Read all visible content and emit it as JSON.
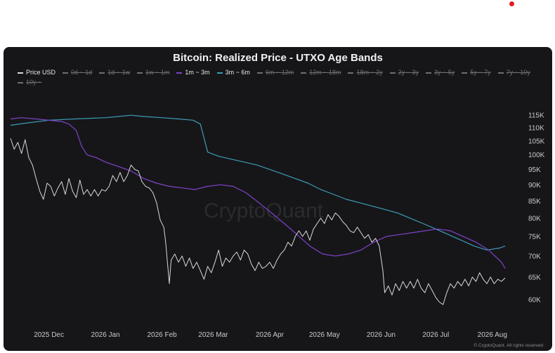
{
  "chart_data": {
    "type": "line",
    "title": "Bitcoin: Realized Price - UTXO Age Bands",
    "y_scale": "log",
    "ylim": [
      56000,
      120000
    ],
    "y_ticks": [
      {
        "value": 115000,
        "label": "115K"
      },
      {
        "value": 110000,
        "label": "110K"
      },
      {
        "value": 105000,
        "label": "105K"
      },
      {
        "value": 100000,
        "label": "100K"
      },
      {
        "value": 95000,
        "label": "95K"
      },
      {
        "value": 90000,
        "label": "90K"
      },
      {
        "value": 85000,
        "label": "85K"
      },
      {
        "value": 80000,
        "label": "80K"
      },
      {
        "value": 75000,
        "label": "75K"
      },
      {
        "value": 70000,
        "label": "70K"
      },
      {
        "value": 65000,
        "label": "65K"
      },
      {
        "value": 60000,
        "label": "60K"
      }
    ],
    "xlim": [
      "2025-11-10",
      "2026-08-18"
    ],
    "x_ticks": [
      {
        "value": "2025-12-01",
        "label": "2025 Dec"
      },
      {
        "value": "2026-01-01",
        "label": "2026 Jan"
      },
      {
        "value": "2026-02-01",
        "label": "2026 Feb"
      },
      {
        "value": "2026-03-01",
        "label": "2026 Mar"
      },
      {
        "value": "2026-04-01",
        "label": "2026 Apr"
      },
      {
        "value": "2026-05-01",
        "label": "2026 May"
      },
      {
        "value": "2026-06-01",
        "label": "2026 Jun"
      },
      {
        "value": "2026-07-01",
        "label": "2026 Jul"
      },
      {
        "value": "2026-08-01",
        "label": "2026 Aug"
      }
    ],
    "grid": false,
    "legend_position": "top",
    "legend": [
      {
        "name": "Price USD",
        "visible": true
      },
      {
        "name": "0d ~ 1d",
        "visible": false
      },
      {
        "name": "1d ~ 1w",
        "visible": false
      },
      {
        "name": "1w ~ 1m",
        "visible": false
      },
      {
        "name": "1m ~ 3m",
        "visible": true
      },
      {
        "name": "3m ~ 6m",
        "visible": true
      },
      {
        "name": "6m ~ 12m",
        "visible": false
      },
      {
        "name": "12m ~ 18m",
        "visible": false
      },
      {
        "name": "18m ~ 2y",
        "visible": false
      },
      {
        "name": "2y ~ 3y",
        "visible": false
      },
      {
        "name": "3y ~ 5y",
        "visible": false
      },
      {
        "name": "5y ~ 7y",
        "visible": false
      },
      {
        "name": "7y ~ 10y",
        "visible": false
      },
      {
        "name": "10y ~",
        "visible": false
      }
    ],
    "series": [
      {
        "name": "Price USD",
        "color": "#d9d9d9",
        "points": [
          [
            "2025-11-10",
            106000
          ],
          [
            "2025-11-12",
            102000
          ],
          [
            "2025-11-14",
            104500
          ],
          [
            "2025-11-16",
            100500
          ],
          [
            "2025-11-18",
            105500
          ],
          [
            "2025-11-20",
            99000
          ],
          [
            "2025-11-22",
            96500
          ],
          [
            "2025-11-24",
            92000
          ],
          [
            "2025-11-26",
            88000
          ],
          [
            "2025-11-28",
            85500
          ],
          [
            "2025-11-30",
            90500
          ],
          [
            "2025-12-02",
            89500
          ],
          [
            "2025-12-04",
            86500
          ],
          [
            "2025-12-06",
            89000
          ],
          [
            "2025-12-08",
            91000
          ],
          [
            "2025-12-10",
            87000
          ],
          [
            "2025-12-12",
            92000
          ],
          [
            "2025-12-14",
            88000
          ],
          [
            "2025-12-16",
            86000
          ],
          [
            "2025-12-18",
            91500
          ],
          [
            "2025-12-20",
            87000
          ],
          [
            "2025-12-22",
            88500
          ],
          [
            "2025-12-24",
            86500
          ],
          [
            "2025-12-26",
            88500
          ],
          [
            "2025-12-28",
            86500
          ],
          [
            "2025-12-30",
            88500
          ],
          [
            "2026-01-01",
            88000
          ],
          [
            "2026-01-03",
            89500
          ],
          [
            "2026-01-05",
            93000
          ],
          [
            "2026-01-07",
            91000
          ],
          [
            "2026-01-09",
            94000
          ],
          [
            "2026-01-11",
            91000
          ],
          [
            "2026-01-13",
            93000
          ],
          [
            "2026-01-15",
            96500
          ],
          [
            "2026-01-17",
            95000
          ],
          [
            "2026-01-19",
            94500
          ],
          [
            "2026-01-21",
            91000
          ],
          [
            "2026-01-23",
            89500
          ],
          [
            "2026-01-25",
            89000
          ],
          [
            "2026-01-27",
            87500
          ],
          [
            "2026-01-29",
            84500
          ],
          [
            "2026-01-31",
            79500
          ],
          [
            "2026-02-02",
            77500
          ],
          [
            "2026-02-03",
            73500
          ],
          [
            "2026-02-05",
            63500
          ],
          [
            "2026-02-06",
            69000
          ],
          [
            "2026-02-08",
            70500
          ],
          [
            "2026-02-10",
            68500
          ],
          [
            "2026-02-12",
            70000
          ],
          [
            "2026-02-14",
            67500
          ],
          [
            "2026-02-16",
            69500
          ],
          [
            "2026-02-18",
            67000
          ],
          [
            "2026-02-20",
            68500
          ],
          [
            "2026-02-22",
            66500
          ],
          [
            "2026-02-24",
            64500
          ],
          [
            "2026-02-26",
            67500
          ],
          [
            "2026-02-28",
            66000
          ],
          [
            "2026-03-02",
            68500
          ],
          [
            "2026-03-04",
            71500
          ],
          [
            "2026-03-06",
            67500
          ],
          [
            "2026-03-08",
            69500
          ],
          [
            "2026-03-10",
            68500
          ],
          [
            "2026-03-12",
            70000
          ],
          [
            "2026-03-14",
            71000
          ],
          [
            "2026-03-16",
            69000
          ],
          [
            "2026-03-18",
            71500
          ],
          [
            "2026-03-20",
            70500
          ],
          [
            "2026-03-22",
            68000
          ],
          [
            "2026-03-24",
            66500
          ],
          [
            "2026-03-26",
            68500
          ],
          [
            "2026-03-28",
            67000
          ],
          [
            "2026-03-30",
            67500
          ],
          [
            "2026-04-01",
            68500
          ],
          [
            "2026-04-03",
            67000
          ],
          [
            "2026-04-05",
            69000
          ],
          [
            "2026-04-07",
            70500
          ],
          [
            "2026-04-09",
            71500
          ],
          [
            "2026-04-11",
            73500
          ],
          [
            "2026-04-13",
            72500
          ],
          [
            "2026-04-15",
            75000
          ],
          [
            "2026-04-17",
            76500
          ],
          [
            "2026-04-19",
            75000
          ],
          [
            "2026-04-21",
            76500
          ],
          [
            "2026-04-23",
            74000
          ],
          [
            "2026-04-25",
            77000
          ],
          [
            "2026-04-27",
            78500
          ],
          [
            "2026-04-29",
            80000
          ],
          [
            "2026-05-01",
            78500
          ],
          [
            "2026-05-03",
            81000
          ],
          [
            "2026-05-05",
            79500
          ],
          [
            "2026-05-07",
            81500
          ],
          [
            "2026-05-09",
            80500
          ],
          [
            "2026-05-11",
            79000
          ],
          [
            "2026-05-13",
            78000
          ],
          [
            "2026-05-15",
            76500
          ],
          [
            "2026-05-17",
            76000
          ],
          [
            "2026-05-19",
            77500
          ],
          [
            "2026-05-21",
            76000
          ],
          [
            "2026-05-23",
            74500
          ],
          [
            "2026-05-25",
            75500
          ],
          [
            "2026-05-27",
            73500
          ],
          [
            "2026-05-29",
            74500
          ],
          [
            "2026-05-31",
            72500
          ],
          [
            "2026-06-02",
            66500
          ],
          [
            "2026-06-03",
            61500
          ],
          [
            "2026-06-05",
            63000
          ],
          [
            "2026-06-07",
            61000
          ],
          [
            "2026-06-09",
            63500
          ],
          [
            "2026-06-11",
            62000
          ],
          [
            "2026-06-13",
            64000
          ],
          [
            "2026-06-15",
            62500
          ],
          [
            "2026-06-17",
            64000
          ],
          [
            "2026-06-19",
            62500
          ],
          [
            "2026-06-21",
            64500
          ],
          [
            "2026-06-23",
            62500
          ],
          [
            "2026-06-25",
            61500
          ],
          [
            "2026-06-27",
            63500
          ],
          [
            "2026-06-29",
            62000
          ],
          [
            "2026-07-01",
            60500
          ],
          [
            "2026-07-03",
            59500
          ],
          [
            "2026-07-05",
            59000
          ],
          [
            "2026-07-07",
            61500
          ],
          [
            "2026-07-09",
            63500
          ],
          [
            "2026-07-11",
            62500
          ],
          [
            "2026-07-13",
            64000
          ],
          [
            "2026-07-15",
            63000
          ],
          [
            "2026-07-17",
            64500
          ],
          [
            "2026-07-19",
            63000
          ],
          [
            "2026-07-21",
            65000
          ],
          [
            "2026-07-23",
            64000
          ],
          [
            "2026-07-25",
            66000
          ],
          [
            "2026-07-27",
            64500
          ],
          [
            "2026-07-29",
            63500
          ],
          [
            "2026-07-31",
            65000
          ],
          [
            "2026-08-02",
            63500
          ],
          [
            "2026-08-04",
            64500
          ],
          [
            "2026-08-06",
            64000
          ],
          [
            "2026-08-08",
            64800
          ]
        ]
      },
      {
        "name": "1m ~ 3m",
        "color": "#7f43c9",
        "points": [
          [
            "2025-11-10",
            113500
          ],
          [
            "2025-11-16",
            114000
          ],
          [
            "2025-11-24",
            113500
          ],
          [
            "2025-12-01",
            113000
          ],
          [
            "2025-12-08",
            112500
          ],
          [
            "2025-12-12",
            111500
          ],
          [
            "2025-12-16",
            109000
          ],
          [
            "2025-12-19",
            103000
          ],
          [
            "2025-12-22",
            100000
          ],
          [
            "2025-12-27",
            99000
          ],
          [
            "2026-01-01",
            97500
          ],
          [
            "2026-01-08",
            96000
          ],
          [
            "2026-01-15",
            94500
          ],
          [
            "2026-01-22",
            92000
          ],
          [
            "2026-01-29",
            90500
          ],
          [
            "2026-02-05",
            89500
          ],
          [
            "2026-02-12",
            89000
          ],
          [
            "2026-02-19",
            88500
          ],
          [
            "2026-02-26",
            89500
          ],
          [
            "2026-03-05",
            90000
          ],
          [
            "2026-03-12",
            89500
          ],
          [
            "2026-03-19",
            87500
          ],
          [
            "2026-03-26",
            84500
          ],
          [
            "2026-04-02",
            81500
          ],
          [
            "2026-04-09",
            78500
          ],
          [
            "2026-04-16",
            75500
          ],
          [
            "2026-04-23",
            72500
          ],
          [
            "2026-04-30",
            70500
          ],
          [
            "2026-05-07",
            70000
          ],
          [
            "2026-05-14",
            70500
          ],
          [
            "2026-05-21",
            71500
          ],
          [
            "2026-05-28",
            73500
          ],
          [
            "2026-06-04",
            75000
          ],
          [
            "2026-06-11",
            75500
          ],
          [
            "2026-06-18",
            76000
          ],
          [
            "2026-06-25",
            76500
          ],
          [
            "2026-07-02",
            77000
          ],
          [
            "2026-07-09",
            76500
          ],
          [
            "2026-07-16",
            75000
          ],
          [
            "2026-07-23",
            73500
          ],
          [
            "2026-07-30",
            71500
          ],
          [
            "2026-08-06",
            68500
          ],
          [
            "2026-08-08",
            67000
          ]
        ]
      },
      {
        "name": "3m ~ 6m",
        "color": "#3d9bb5",
        "points": [
          [
            "2025-11-10",
            111000
          ],
          [
            "2025-11-20",
            112000
          ],
          [
            "2025-12-01",
            113000
          ],
          [
            "2025-12-15",
            113500
          ],
          [
            "2026-01-01",
            114000
          ],
          [
            "2026-01-08",
            114500
          ],
          [
            "2026-01-15",
            115000
          ],
          [
            "2026-01-22",
            114500
          ],
          [
            "2026-02-01",
            114000
          ],
          [
            "2026-02-10",
            113500
          ],
          [
            "2026-02-18",
            113000
          ],
          [
            "2026-02-22",
            111500
          ],
          [
            "2026-02-26",
            101000
          ],
          [
            "2026-03-04",
            99500
          ],
          [
            "2026-03-11",
            98500
          ],
          [
            "2026-03-18",
            97500
          ],
          [
            "2026-03-25",
            96500
          ],
          [
            "2026-04-01",
            95000
          ],
          [
            "2026-04-08",
            93500
          ],
          [
            "2026-04-15",
            92000
          ],
          [
            "2026-04-22",
            90500
          ],
          [
            "2026-04-29",
            88500
          ],
          [
            "2026-05-06",
            87000
          ],
          [
            "2026-05-13",
            85500
          ],
          [
            "2026-05-20",
            84500
          ],
          [
            "2026-05-27",
            83500
          ],
          [
            "2026-06-03",
            82500
          ],
          [
            "2026-06-10",
            81500
          ],
          [
            "2026-06-17",
            80000
          ],
          [
            "2026-06-24",
            78500
          ],
          [
            "2026-07-01",
            77000
          ],
          [
            "2026-07-08",
            75500
          ],
          [
            "2026-07-15",
            74000
          ],
          [
            "2026-07-22",
            72500
          ],
          [
            "2026-07-29",
            71500
          ],
          [
            "2026-08-05",
            72000
          ],
          [
            "2026-08-08",
            72500
          ]
        ]
      }
    ]
  },
  "legend_colors": {
    "hidden": "#6e6e74"
  },
  "accent_dot_color": "#e31b23",
  "watermark": "CryptoQuant",
  "copyright": "© CryptoQuant. All rights reserved"
}
